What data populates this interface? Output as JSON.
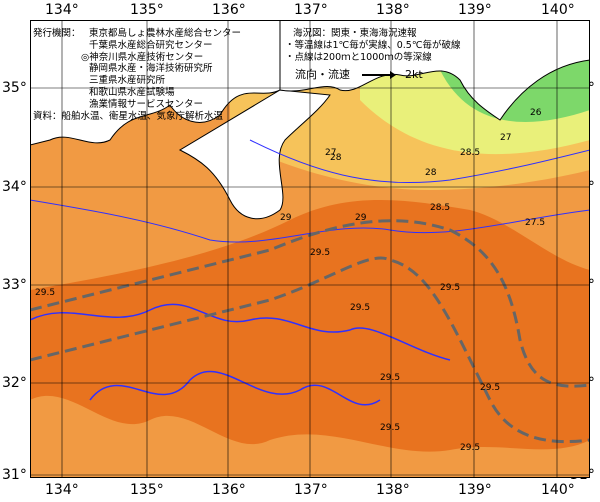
{
  "map": {
    "lon_labels": [
      "134°",
      "135°",
      "136°",
      "137°",
      "138°",
      "139°",
      "140°"
    ],
    "lat_labels": [
      "35°",
      "34°",
      "33°",
      "32°",
      "31°"
    ],
    "colors": {
      "land": "#ffffff",
      "warm_sea": "#e8731f",
      "mid_sea": "#f19a43",
      "cool_sea": "#f6c35a",
      "cold_sea": "#e9f07a",
      "coldest_sea": "#7dd86a",
      "isotherm": "#3030ff",
      "kuroshio_axis": "#666666",
      "grid": "#000000"
    },
    "contour_labels": [
      "26",
      "27",
      "28",
      "28.5",
      "29",
      "29.5",
      "27.5",
      "29",
      "29.5",
      "29.5",
      "29.5",
      "29.5",
      "29.5",
      "29.5",
      "29.5",
      "28.5",
      "28",
      "27"
    ]
  },
  "legend": {
    "publisher_heading": "発行機関：",
    "publishers": [
      "東京都島しょ農林水産総合センター",
      "千葉県水産総合研究センター",
      "◎神奈川県水産技術センター",
      "静岡県水産・海洋技術研究所",
      "三重県水産研究所",
      "和歌山県水産試験場",
      "漁業情報サービスセンター"
    ],
    "sources": "資料：船舶水温、衛星水温、気象庁解析水温",
    "map_title": "海況図：関東・東海海況速報",
    "note1": "・等温線は1℃毎が実線、0.5℃毎が破線",
    "note2": "・点線は200ｍと1000ｍの等深線",
    "current_label": "流向・流速",
    "current_scale": "2kt"
  }
}
